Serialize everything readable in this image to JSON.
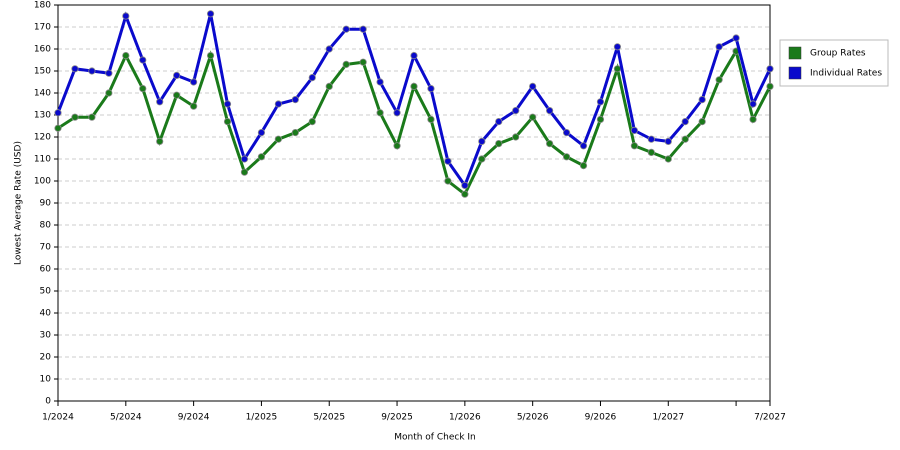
{
  "chart_data": {
    "type": "line",
    "x_label": "Month of Check In",
    "y_label": "Lowest Average Rate (USD)",
    "categories": [
      "1/2024",
      null,
      null,
      null,
      "5/2024",
      null,
      null,
      null,
      "9/2024",
      null,
      null,
      null,
      "1/2025",
      null,
      null,
      null,
      "5/2025",
      null,
      null,
      null,
      "9/2025",
      null,
      null,
      null,
      "1/2026",
      null,
      null,
      null,
      "5/2026",
      null,
      null,
      null,
      "9/2026",
      null,
      null,
      null,
      "1/2027",
      null,
      null,
      null,
      null,
      null,
      "7/2027"
    ],
    "series": [
      {
        "name": "Group Rates",
        "color": "#1a7a1a",
        "values": [
          124,
          129,
          129,
          140,
          157,
          142,
          118,
          139,
          134,
          157,
          127,
          104,
          111,
          119,
          122,
          127,
          143,
          153,
          154,
          131,
          116,
          143,
          128,
          100,
          94,
          110,
          117,
          120,
          129,
          117,
          111,
          107,
          128,
          151,
          116,
          113,
          110,
          119,
          127,
          146,
          159,
          128,
          143
        ]
      },
      {
        "name": "Individual Rates",
        "color": "#0a0acc",
        "values": [
          131,
          151,
          150,
          149,
          175,
          155,
          136,
          148,
          145,
          176,
          135,
          110,
          122,
          135,
          137,
          147,
          160,
          169,
          169,
          145,
          131,
          157,
          142,
          109,
          98,
          118,
          127,
          132,
          143,
          132,
          122,
          116,
          136,
          161,
          123,
          119,
          118,
          127,
          137,
          161,
          165,
          135,
          151
        ]
      }
    ],
    "ylim": [
      0,
      180
    ],
    "yticks": [
      0,
      10,
      20,
      30,
      40,
      50,
      60,
      70,
      80,
      90,
      100,
      110,
      120,
      130,
      140,
      150,
      160,
      170,
      180
    ],
    "grid": true,
    "legend": "right"
  }
}
